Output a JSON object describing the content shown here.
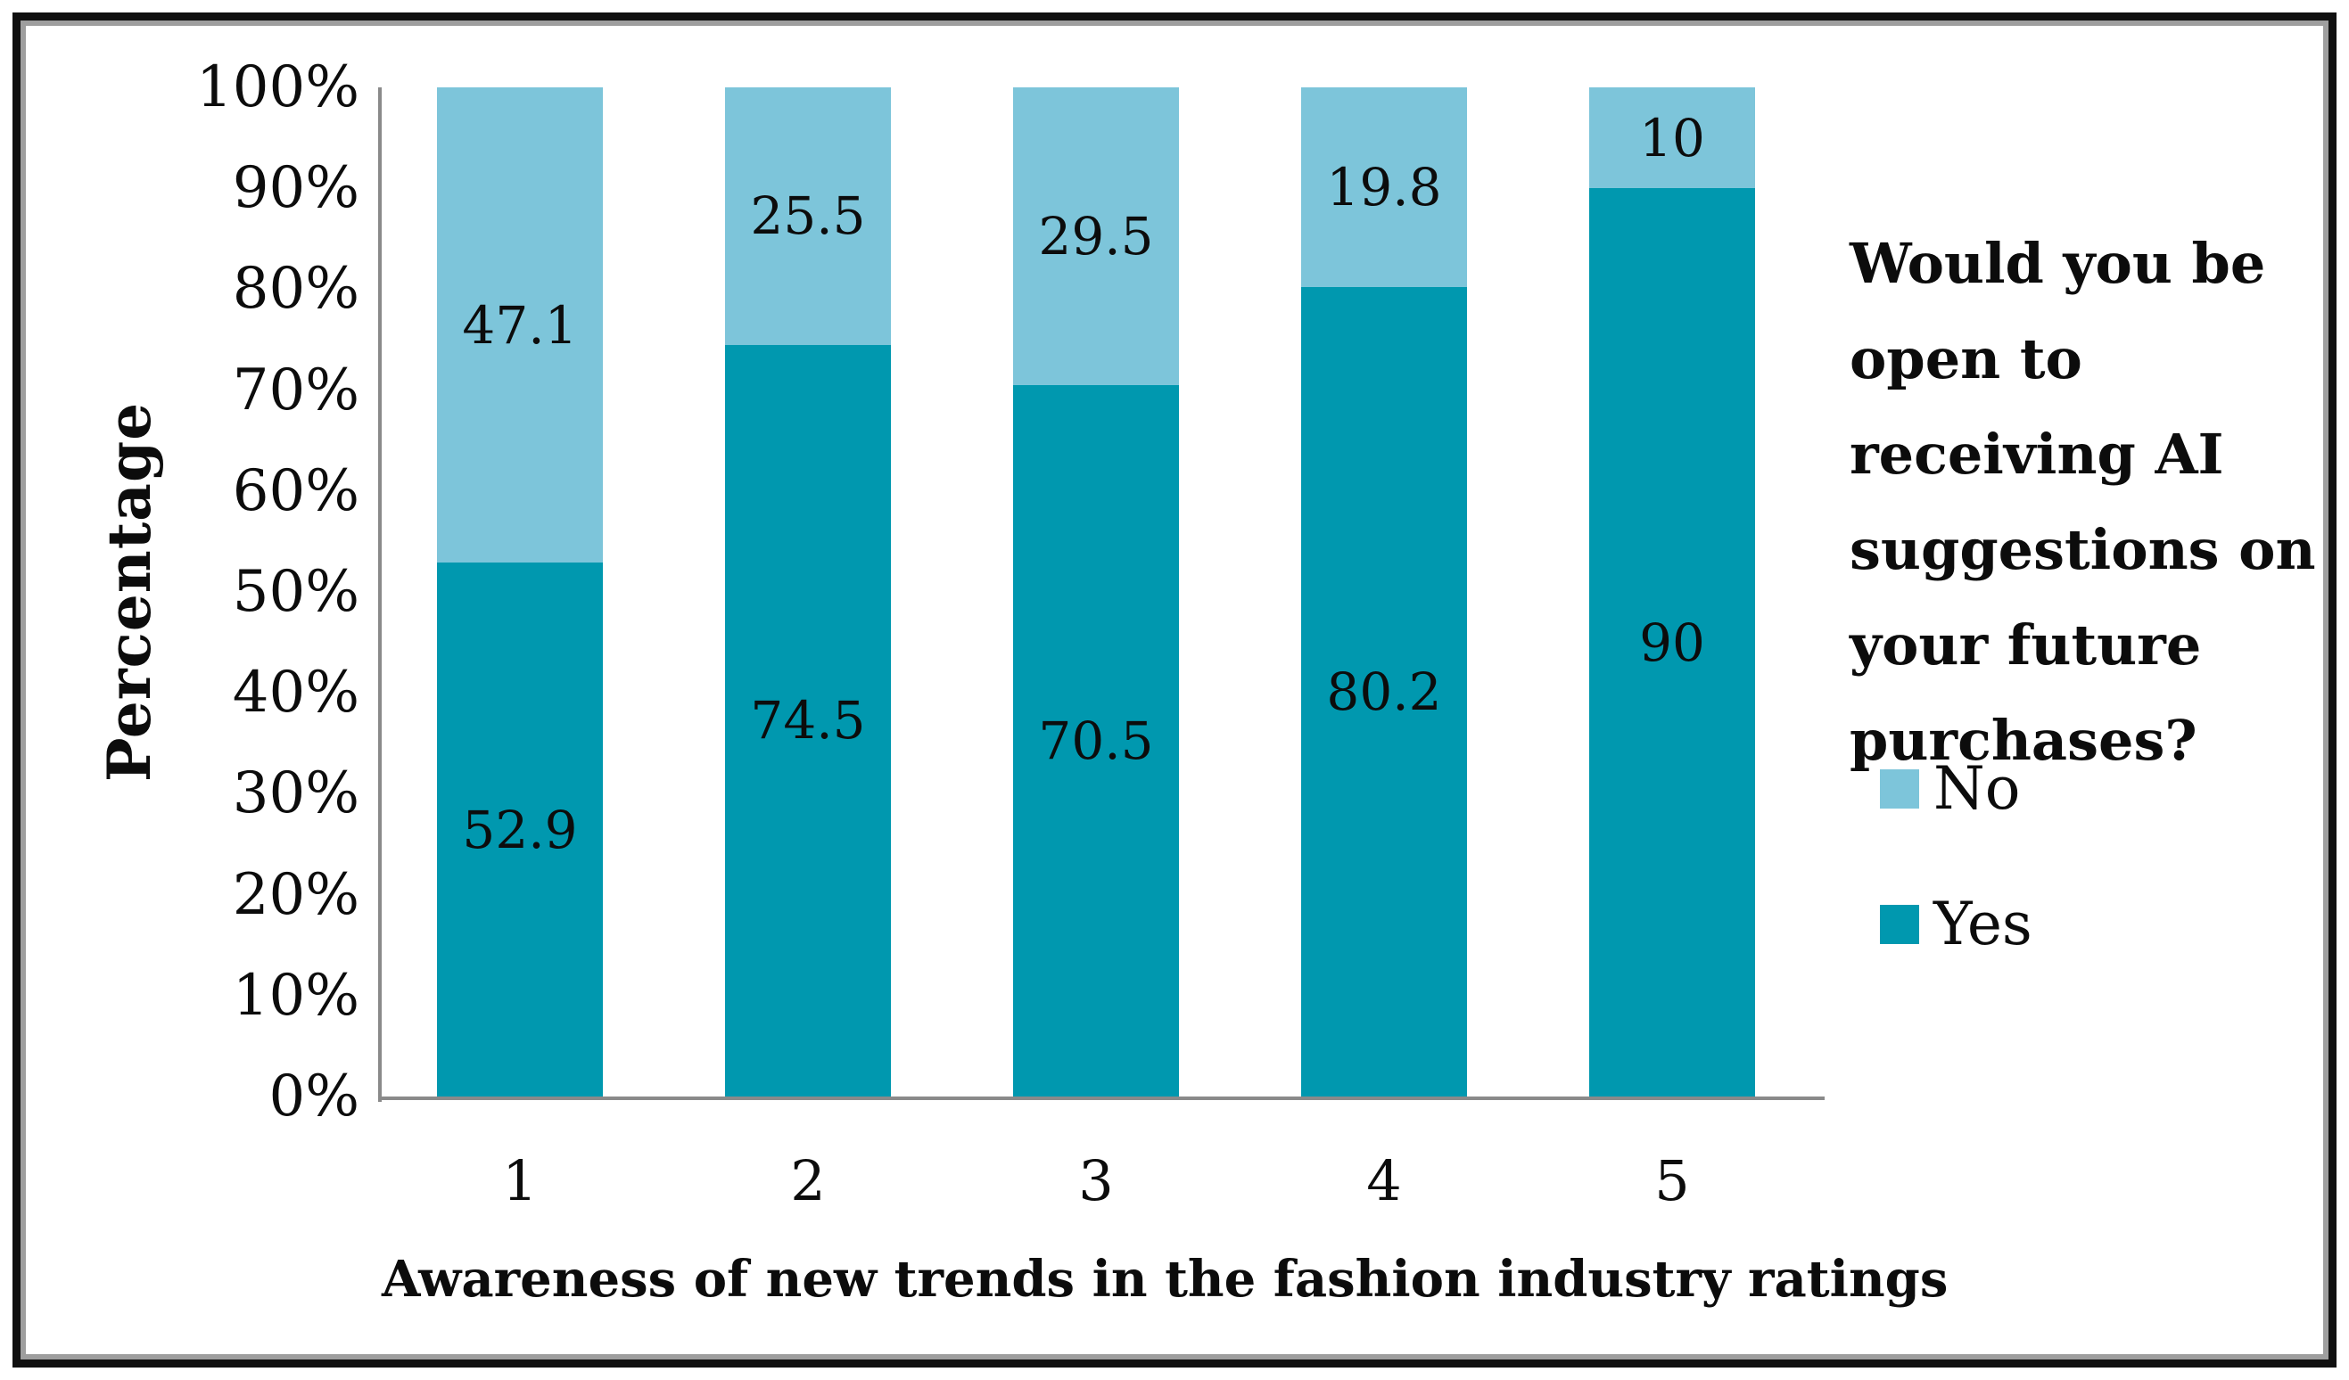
{
  "figure": {
    "background": "#ffffff",
    "frame": {
      "outer_color": "#101010",
      "inner_color": "#9e9e9e"
    }
  },
  "chart_data": {
    "type": "bar",
    "variant": "stacked-100-percent-column",
    "categories": [
      "1",
      "2",
      "3",
      "4",
      "5"
    ],
    "series": [
      {
        "name": "Yes",
        "color": "#0098AF",
        "values": [
          52.9,
          74.5,
          70.5,
          80.2,
          90
        ]
      },
      {
        "name": "No",
        "color": "#7DC5DA",
        "values": [
          47.1,
          25.5,
          29.5,
          19.8,
          10
        ]
      }
    ],
    "title": "",
    "xlabel": "Awareness of new trends in the fashion industry ratings",
    "ylabel": "Percentage",
    "y_ticks": [
      "100%",
      "90%",
      "80%",
      "70%",
      "60%",
      "50%",
      "40%",
      "30%",
      "20%",
      "10%",
      "0%"
    ],
    "ylim": [
      0,
      100
    ],
    "grid": false,
    "data_label_position": "center",
    "legend_position": "right",
    "legend_title": "Would you be open to receiving AI suggestions on your future purchases?",
    "axis_line_color": "#8a8a8a",
    "text_color": "#0c0c0c"
  },
  "legend": {
    "title_lines": [
      "Would you be",
      "open to",
      "receiving AI",
      "suggestions on",
      "your future",
      "purchases?"
    ],
    "items": [
      {
        "label": "No",
        "color": "#7DC5DA"
      },
      {
        "label": "Yes",
        "color": "#0098AF"
      }
    ]
  }
}
